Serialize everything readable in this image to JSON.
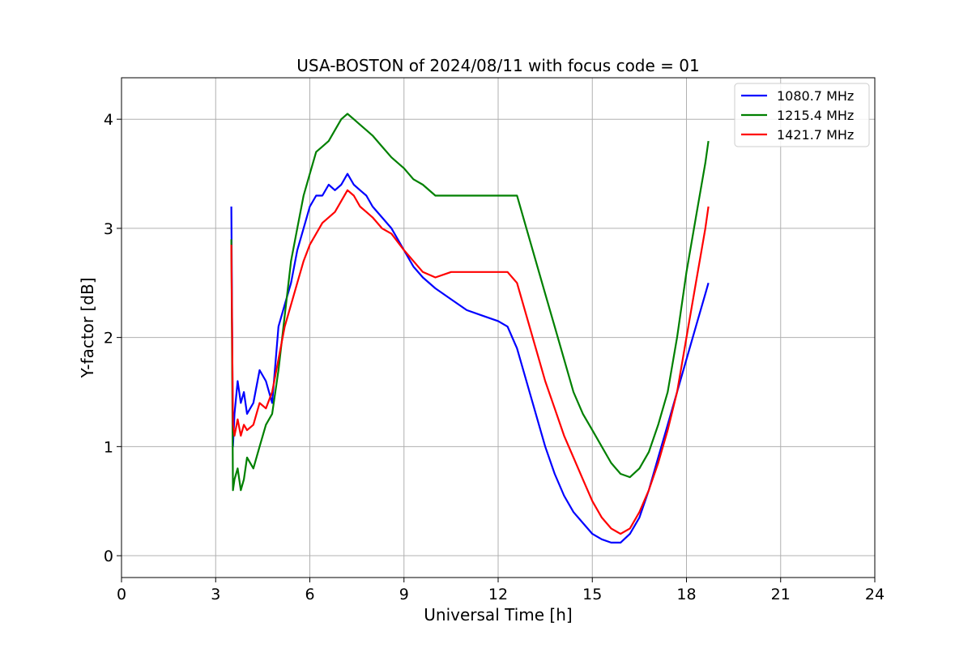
{
  "chart_data": {
    "type": "line",
    "title": "USA-BOSTON of 2024/08/11 with focus code = 01",
    "xlabel": "Universal Time [h]",
    "ylabel": "Y-factor [dB]",
    "xlim": [
      0,
      24
    ],
    "ylim": [
      -0.2,
      4.38
    ],
    "xticks": [
      0,
      3,
      6,
      9,
      12,
      15,
      18,
      21,
      24
    ],
    "xtick_labels": [
      "0",
      "3",
      "6",
      "9",
      "12",
      "15",
      "18",
      "21",
      "24"
    ],
    "yticks": [
      0,
      1,
      2,
      3,
      4
    ],
    "ytick_labels": [
      "0",
      "1",
      "2",
      "3",
      "4"
    ],
    "grid": true,
    "legend_position": "top-right",
    "series": [
      {
        "name": "1080.7 MHz",
        "color": "#0000ff",
        "x": [
          3.5,
          3.55,
          3.6,
          3.7,
          3.8,
          3.9,
          4.0,
          4.2,
          4.4,
          4.6,
          4.8,
          5.0,
          5.2,
          5.4,
          5.6,
          5.8,
          6.0,
          6.2,
          6.4,
          6.6,
          6.8,
          7.0,
          7.2,
          7.4,
          7.6,
          7.8,
          8.0,
          8.3,
          8.6,
          9.0,
          9.3,
          9.6,
          10.0,
          10.5,
          11.0,
          11.5,
          12.0,
          12.3,
          12.6,
          12.9,
          13.2,
          13.5,
          13.8,
          14.1,
          14.4,
          14.7,
          15.0,
          15.3,
          15.6,
          15.9,
          16.2,
          16.5,
          16.8,
          17.1,
          17.4,
          17.7,
          18.0,
          18.3,
          18.6,
          18.7
        ],
        "y": [
          3.2,
          1.0,
          1.3,
          1.6,
          1.4,
          1.5,
          1.3,
          1.4,
          1.7,
          1.6,
          1.4,
          2.1,
          2.3,
          2.5,
          2.8,
          3.0,
          3.2,
          3.3,
          3.3,
          3.4,
          3.35,
          3.4,
          3.5,
          3.4,
          3.35,
          3.3,
          3.2,
          3.1,
          3.0,
          2.8,
          2.65,
          2.55,
          2.45,
          2.35,
          2.25,
          2.2,
          2.15,
          2.1,
          1.9,
          1.6,
          1.3,
          1.0,
          0.75,
          0.55,
          0.4,
          0.3,
          0.2,
          0.15,
          0.12,
          0.12,
          0.2,
          0.35,
          0.6,
          0.9,
          1.2,
          1.5,
          1.8,
          2.1,
          2.4,
          2.5
        ]
      },
      {
        "name": "1215.4 MHz",
        "color": "#008000",
        "x": [
          3.5,
          3.55,
          3.6,
          3.7,
          3.8,
          3.9,
          4.0,
          4.2,
          4.4,
          4.6,
          4.8,
          5.0,
          5.2,
          5.4,
          5.6,
          5.8,
          6.0,
          6.2,
          6.4,
          6.6,
          6.8,
          7.0,
          7.2,
          7.4,
          7.6,
          7.8,
          8.0,
          8.3,
          8.6,
          9.0,
          9.3,
          9.6,
          10.0,
          10.5,
          11.0,
          11.5,
          12.0,
          12.3,
          12.6,
          12.9,
          13.2,
          13.5,
          13.8,
          14.1,
          14.4,
          14.7,
          15.0,
          15.3,
          15.6,
          15.9,
          16.2,
          16.5,
          16.8,
          17.1,
          17.4,
          17.7,
          18.0,
          18.3,
          18.6,
          18.7
        ],
        "y": [
          2.9,
          0.6,
          0.7,
          0.8,
          0.6,
          0.7,
          0.9,
          0.8,
          1.0,
          1.2,
          1.3,
          1.7,
          2.2,
          2.7,
          3.0,
          3.3,
          3.5,
          3.7,
          3.75,
          3.8,
          3.9,
          4.0,
          4.05,
          4.0,
          3.95,
          3.9,
          3.85,
          3.75,
          3.65,
          3.55,
          3.45,
          3.4,
          3.3,
          3.3,
          3.3,
          3.3,
          3.3,
          3.3,
          3.3,
          3.0,
          2.7,
          2.4,
          2.1,
          1.8,
          1.5,
          1.3,
          1.15,
          1.0,
          0.85,
          0.75,
          0.72,
          0.8,
          0.95,
          1.2,
          1.5,
          2.0,
          2.6,
          3.1,
          3.6,
          3.8
        ]
      },
      {
        "name": "1421.7 MHz",
        "color": "#ff0000",
        "x": [
          3.5,
          3.55,
          3.6,
          3.7,
          3.8,
          3.9,
          4.0,
          4.2,
          4.4,
          4.6,
          4.8,
          5.0,
          5.2,
          5.4,
          5.6,
          5.8,
          6.0,
          6.2,
          6.4,
          6.6,
          6.8,
          7.0,
          7.2,
          7.4,
          7.6,
          7.8,
          8.0,
          8.3,
          8.6,
          9.0,
          9.3,
          9.6,
          10.0,
          10.5,
          11.0,
          11.5,
          12.0,
          12.3,
          12.6,
          12.9,
          13.2,
          13.5,
          13.8,
          14.1,
          14.4,
          14.7,
          15.0,
          15.3,
          15.6,
          15.9,
          16.2,
          16.5,
          16.8,
          17.1,
          17.4,
          17.7,
          18.0,
          18.3,
          18.6,
          18.7
        ],
        "y": [
          2.85,
          1.2,
          1.1,
          1.25,
          1.1,
          1.2,
          1.15,
          1.2,
          1.4,
          1.35,
          1.5,
          1.8,
          2.1,
          2.3,
          2.5,
          2.7,
          2.85,
          2.95,
          3.05,
          3.1,
          3.15,
          3.25,
          3.35,
          3.3,
          3.2,
          3.15,
          3.1,
          3.0,
          2.95,
          2.8,
          2.7,
          2.6,
          2.55,
          2.6,
          2.6,
          2.6,
          2.6,
          2.6,
          2.5,
          2.2,
          1.9,
          1.6,
          1.35,
          1.1,
          0.9,
          0.7,
          0.5,
          0.35,
          0.25,
          0.2,
          0.25,
          0.4,
          0.6,
          0.85,
          1.15,
          1.5,
          2.0,
          2.5,
          3.0,
          3.2
        ]
      }
    ]
  }
}
